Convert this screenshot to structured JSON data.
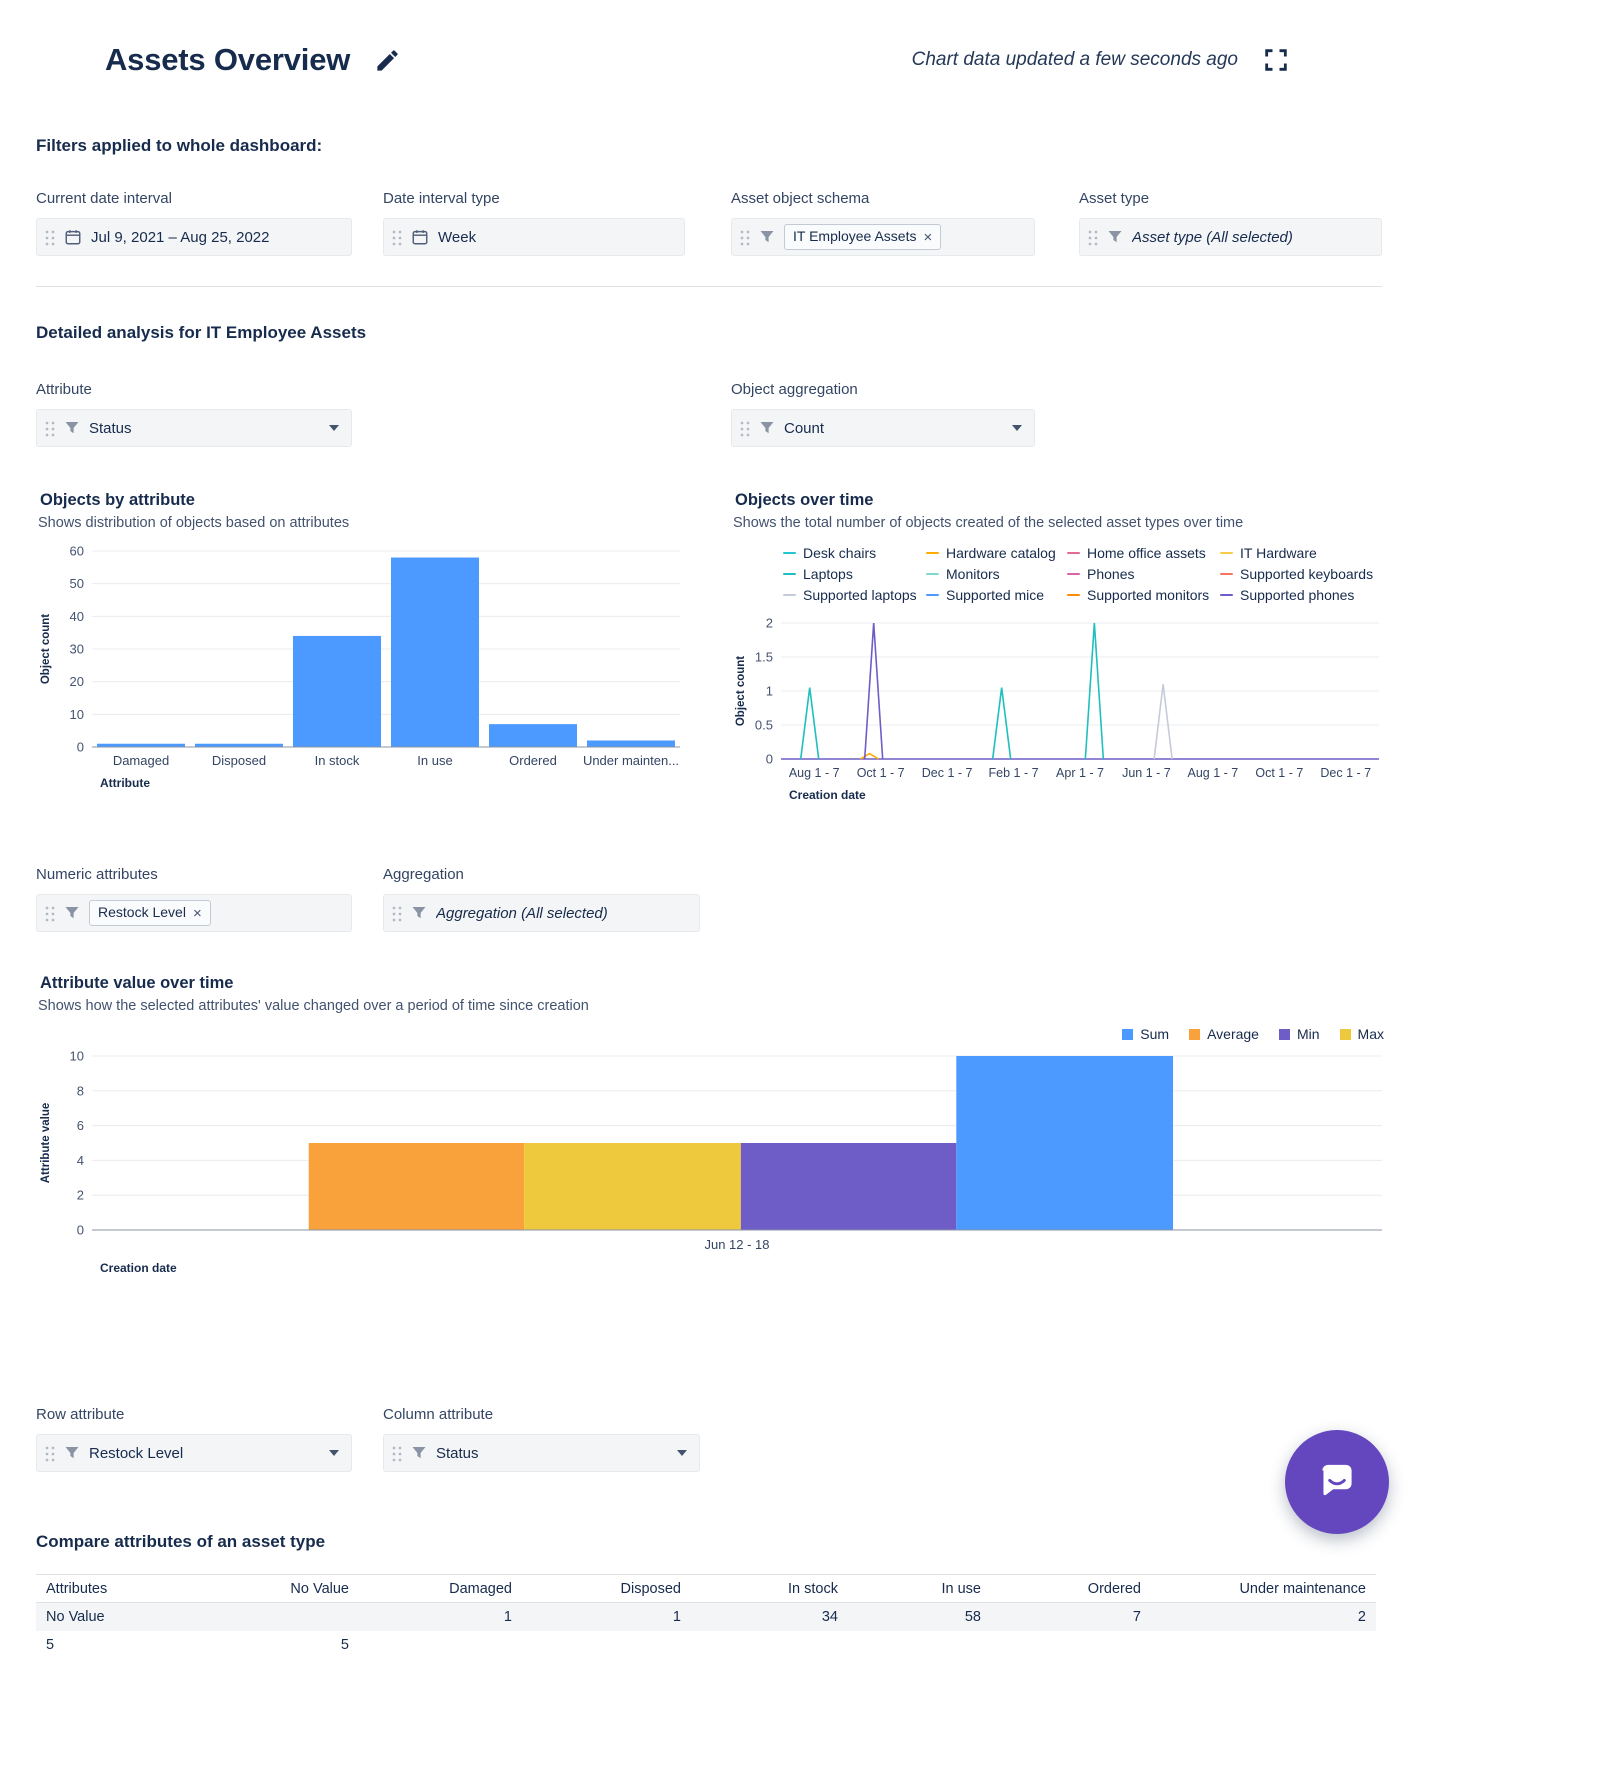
{
  "header": {
    "title": "Assets Overview",
    "updated_text": "Chart data updated a few seconds ago"
  },
  "filters": {
    "heading": "Filters applied to whole dashboard:",
    "date_interval": {
      "label": "Current date interval",
      "value": "Jul 9, 2021  –  Aug 25, 2022"
    },
    "interval_type": {
      "label": "Date interval type",
      "value": "Week"
    },
    "object_schema": {
      "label": "Asset object schema",
      "chip": "IT Employee Assets"
    },
    "asset_type": {
      "label": "Asset type",
      "value": "Asset type (All selected)"
    }
  },
  "analysis": {
    "heading": "Detailed analysis for IT Employee Assets",
    "attribute": {
      "label": "Attribute",
      "value": "Status"
    },
    "object_aggregation": {
      "label": "Object aggregation",
      "value": "Count"
    },
    "numeric_attributes": {
      "label": "Numeric attributes",
      "chip": "Restock Level"
    },
    "aggregation": {
      "label": "Aggregation",
      "value": "Aggregation (All selected)"
    },
    "row_attribute": {
      "label": "Row attribute",
      "value": "Restock Level"
    },
    "column_attribute": {
      "label": "Column attribute",
      "value": "Status"
    }
  },
  "icons": {
    "edit": "pencil-icon",
    "fullscreen": "expand-icon",
    "calendar": "calendar-icon",
    "filter": "funnel-icon",
    "drag": "drag-handle-icon",
    "chevron": "chevron-down-icon",
    "close": "×",
    "chat": "chat-bubble-icon"
  },
  "colors": {
    "bar_blue": "#4C9AFF",
    "chat_button": "#6446BE",
    "text_primary": "#172B4D"
  },
  "chart_data": [
    {
      "id": "objects-by-attribute",
      "type": "bar",
      "title": "Objects by attribute",
      "subtitle": "Shows distribution of objects based on attributes",
      "categories": [
        "Damaged",
        "Disposed",
        "In stock",
        "In use",
        "Ordered",
        "Under mainten..."
      ],
      "values": [
        1,
        1,
        34,
        58,
        7,
        2
      ],
      "bar_color": "#4C9AFF",
      "ylabel": "Object count",
      "xlabel": "Attribute",
      "ylim": [
        0,
        60
      ],
      "yticks": [
        0,
        10,
        20,
        30,
        40,
        50,
        60
      ],
      "grid": true
    },
    {
      "id": "objects-over-time",
      "type": "line",
      "title": "Objects over time",
      "subtitle": "Shows the total number of objects created of the selected asset types over time",
      "ylabel": "Object count",
      "xlabel": "Creation date",
      "ylim": [
        0,
        2
      ],
      "yticks": [
        0,
        0.5,
        1,
        1.5,
        2
      ],
      "xticks": [
        "Aug 1 - 7",
        "Oct 1 - 7",
        "Dec 1 - 7",
        "Feb 1 - 7",
        "Apr 1 - 7",
        "Jun 1 - 7",
        "Aug 1 - 7",
        "Oct 1 - 7",
        "Dec 1 - 7"
      ],
      "legend_position": "top",
      "grid": true,
      "legend": [
        {
          "label": "Desk chairs",
          "color": "#22C7CF"
        },
        {
          "label": "Hardware catalog",
          "color": "#FFAB00"
        },
        {
          "label": "Home office assets",
          "color": "#E56A9A"
        },
        {
          "label": "IT Hardware",
          "color": "#F5CD47"
        },
        {
          "label": "Laptops",
          "color": "#1FBFBF"
        },
        {
          "label": "Monitors",
          "color": "#7EDAD0"
        },
        {
          "label": "Phones",
          "color": "#DA62AC"
        },
        {
          "label": "Supported keyboards",
          "color": "#F87462"
        },
        {
          "label": "Supported laptops",
          "color": "#C5CBD9"
        },
        {
          "label": "Supported mice",
          "color": "#4C9AFF"
        },
        {
          "label": "Supported monitors",
          "color": "#FF8B00"
        },
        {
          "label": "Supported phones",
          "color": "#6E5DC6"
        }
      ],
      "baseline_value": 0,
      "baseline_color": "#6E5DC6",
      "spikes": [
        {
          "series": "Laptops",
          "color": "#1FBFBF",
          "x_frac": 0.048,
          "peak": 1.05
        },
        {
          "series": "Hardware catalog",
          "color": "#FFAB00",
          "x_frac": 0.148,
          "peak": 0.08
        },
        {
          "series": "Supported phones",
          "color": "#6E5DC6",
          "x_frac": 0.155,
          "peak": 2
        },
        {
          "series": "Laptops",
          "color": "#1FBFBF",
          "x_frac": 0.369,
          "peak": 1.05
        },
        {
          "series": "Laptops",
          "color": "#1FBFBF",
          "x_frac": 0.524,
          "peak": 2
        },
        {
          "series": "Supported laptops",
          "color": "#C5CBD9",
          "x_frac": 0.639,
          "peak": 1.1
        }
      ]
    },
    {
      "id": "attribute-value-over-time",
      "type": "bar",
      "title": "Attribute value over time",
      "subtitle": "Shows how the selected attributes' value changed over a period of time since creation",
      "ylabel": "Attribute value",
      "xlabel": "Creation date",
      "ylim": [
        0,
        10
      ],
      "yticks": [
        0,
        2,
        4,
        6,
        8,
        10
      ],
      "grid": true,
      "legend_position": "top-right",
      "legend": [
        {
          "label": "Sum",
          "color": "#4C9AFF"
        },
        {
          "label": "Average",
          "color": "#F9A23B"
        },
        {
          "label": "Min",
          "color": "#6E5DC6"
        },
        {
          "label": "Max",
          "color": "#EFC93D"
        }
      ],
      "xticks": [
        {
          "label": "Jun 12 - 18",
          "x_frac": 0.5
        }
      ],
      "series": [
        {
          "name": "Average",
          "value": 5,
          "color": "#F9A23B",
          "x0_frac": 0.168,
          "x1_frac": 0.335
        },
        {
          "name": "Max",
          "value": 5,
          "color": "#EFC93D",
          "x0_frac": 0.335,
          "x1_frac": 0.503
        },
        {
          "name": "Min",
          "value": 5,
          "color": "#6E5DC6",
          "x0_frac": 0.503,
          "x1_frac": 0.67
        },
        {
          "name": "Sum",
          "value": 10,
          "color": "#4C9AFF",
          "x0_frac": 0.67,
          "x1_frac": 0.838
        }
      ]
    },
    {
      "id": "compare-attributes",
      "type": "table",
      "title": "Compare attributes of an asset type",
      "columns": [
        "Attributes",
        "No Value",
        "Damaged",
        "Disposed",
        "In stock",
        "In use",
        "Ordered",
        "Under maintenance"
      ],
      "rows": [
        [
          "No Value",
          "",
          "1",
          "1",
          "34",
          "58",
          "7",
          "2"
        ],
        [
          "5",
          "5",
          "",
          "",
          "",
          "",
          "",
          ""
        ]
      ]
    }
  ]
}
